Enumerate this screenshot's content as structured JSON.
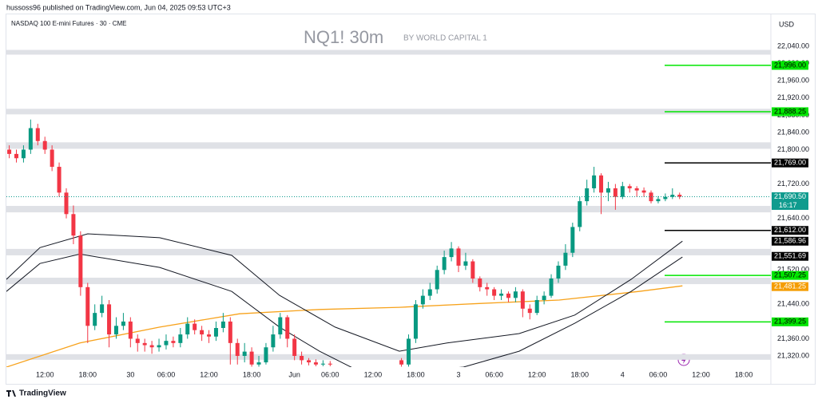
{
  "header": {
    "published": "hussoss96 published on TradingView.com, Jun 04, 2025 09:53 UTC+3",
    "symbol": "NASDAQ 100 E-mini Futures · 30 · CME",
    "watermark": "NQ1! 30m",
    "author": "BY WORLD CAPITAL 1",
    "currency": "USD"
  },
  "footer": {
    "brand": "TradingView"
  },
  "chart_data": {
    "type": "candlestick",
    "up_color": "#089981",
    "down_color": "#f23645",
    "xlim": [
      6.6,
      113.8
    ],
    "ylim": [
      21294,
      22111
    ],
    "xticks": [
      {
        "value": 12,
        "label": "12:00"
      },
      {
        "value": 18,
        "label": "18:00"
      },
      {
        "value": 24,
        "label": "30"
      },
      {
        "value": 29,
        "label": "06:00"
      },
      {
        "value": 35,
        "label": "12:00"
      },
      {
        "value": 41,
        "label": "18:00"
      },
      {
        "value": 47,
        "label": "Jun"
      },
      {
        "value": 52,
        "label": "06:00"
      },
      {
        "value": 58,
        "label": "12:00"
      },
      {
        "value": 64,
        "label": "18:00"
      },
      {
        "value": 70,
        "label": "3"
      },
      {
        "value": 75,
        "label": "06:00"
      },
      {
        "value": 81,
        "label": "12:00"
      },
      {
        "value": 87,
        "label": "18:00"
      },
      {
        "value": 93,
        "label": "4"
      },
      {
        "value": 98,
        "label": "06:00"
      },
      {
        "value": 104,
        "label": "12:00"
      },
      {
        "value": 110,
        "label": "18:00"
      }
    ],
    "yticks": [
      {
        "value": 22040,
        "label": "22,040.00"
      },
      {
        "value": 22000,
        "label": "22,000.00"
      },
      {
        "value": 21960,
        "label": "21,960.00"
      },
      {
        "value": 21920,
        "label": "21,920.00"
      },
      {
        "value": 21880,
        "label": "21,880.00"
      },
      {
        "value": 21840,
        "label": "21,840.00"
      },
      {
        "value": 21800,
        "label": "21,800.00"
      },
      {
        "value": 21720,
        "label": "21,720.00"
      },
      {
        "value": 21640,
        "label": "21,640.00"
      },
      {
        "value": 21520,
        "label": "21,520.00"
      },
      {
        "value": 21440,
        "label": "21,440.00"
      },
      {
        "value": 21360,
        "label": "21,360.00"
      },
      {
        "value": 21320,
        "label": "21,320.00"
      }
    ],
    "candles": [
      [
        7,
        21800,
        21810,
        21780,
        21790
      ],
      [
        8,
        21790,
        21800,
        21770,
        21780
      ],
      [
        9,
        21780,
        21810,
        21770,
        21800
      ],
      [
        10,
        21800,
        21870,
        21790,
        21850
      ],
      [
        11,
        21850,
        21860,
        21810,
        21820
      ],
      [
        12,
        21820,
        21830,
        21790,
        21800
      ],
      [
        13,
        21800,
        21810,
        21750,
        21760
      ],
      [
        14,
        21760,
        21770,
        21690,
        21700
      ],
      [
        15,
        21700,
        21710,
        21640,
        21650
      ],
      [
        16,
        21650,
        21670,
        21580,
        21600
      ],
      [
        17,
        21600,
        21610,
        21460,
        21480
      ],
      [
        18,
        21480,
        21490,
        21350,
        21390
      ],
      [
        19,
        21390,
        21440,
        21380,
        21420
      ],
      [
        20,
        21420,
        21460,
        21410,
        21440
      ],
      [
        21,
        21440,
        21450,
        21340,
        21370
      ],
      [
        22,
        21370,
        21410,
        21360,
        21390
      ],
      [
        23,
        21390,
        21420,
        21380,
        21400
      ],
      [
        24,
        21400,
        21410,
        21340,
        21360
      ],
      [
        25,
        21360,
        21370,
        21330,
        21350
      ],
      [
        26,
        21350,
        21360,
        21330,
        21345
      ],
      [
        27,
        21345,
        21355,
        21325,
        21340
      ],
      [
        28,
        21340,
        21360,
        21330,
        21345
      ],
      [
        29,
        21345,
        21370,
        21335,
        21355
      ],
      [
        30,
        21355,
        21365,
        21340,
        21350
      ],
      [
        31,
        21350,
        21385,
        21340,
        21370
      ],
      [
        32,
        21370,
        21410,
        21360,
        21395
      ],
      [
        33,
        21395,
        21405,
        21370,
        21380
      ],
      [
        34,
        21380,
        21390,
        21355,
        21370
      ],
      [
        35,
        21370,
        21380,
        21350,
        21365
      ],
      [
        36,
        21365,
        21400,
        21355,
        21385
      ],
      [
        37,
        21385,
        21420,
        21375,
        21400
      ],
      [
        38,
        21400,
        21410,
        21300,
        21350
      ],
      [
        39,
        21350,
        21360,
        21300,
        21320
      ],
      [
        40,
        21320,
        21350,
        21305,
        21330
      ],
      [
        41,
        21330,
        21340,
        21295,
        21300
      ],
      [
        42,
        21300,
        21320,
        21295,
        21305
      ],
      [
        43,
        21305,
        21350,
        21300,
        21340
      ],
      [
        44,
        21340,
        21390,
        21330,
        21370
      ],
      [
        45,
        21370,
        21420,
        21360,
        21410
      ],
      [
        46,
        21410,
        21415,
        21340,
        21360
      ],
      [
        47,
        21360,
        21370,
        21310,
        21320
      ],
      [
        48,
        21320,
        21330,
        21300,
        21310
      ],
      [
        49,
        21310,
        21315,
        21298,
        21305
      ],
      [
        50,
        21305,
        21312,
        21296,
        21300
      ],
      [
        51,
        21300,
        21310,
        21296,
        21302
      ],
      [
        52,
        21302,
        21308,
        21296,
        21300
      ],
      [
        62,
        21310,
        21315,
        21295,
        21300
      ],
      [
        63,
        21300,
        21370,
        21295,
        21360
      ],
      [
        64,
        21360,
        21450,
        21350,
        21440
      ],
      [
        65,
        21440,
        21475,
        21430,
        21460
      ],
      [
        66,
        21460,
        21490,
        21450,
        21475
      ],
      [
        67,
        21475,
        21530,
        21465,
        21520
      ],
      [
        68,
        21520,
        21565,
        21510,
        21550
      ],
      [
        69,
        21550,
        21585,
        21540,
        21570
      ],
      [
        70,
        21570,
        21575,
        21515,
        21530
      ],
      [
        71,
        21530,
        21560,
        21520,
        21540
      ],
      [
        72,
        21540,
        21545,
        21490,
        21500
      ],
      [
        73,
        21500,
        21505,
        21470,
        21480
      ],
      [
        74,
        21480,
        21490,
        21460,
        21475
      ],
      [
        75,
        21475,
        21480,
        21450,
        21460
      ],
      [
        76,
        21460,
        21475,
        21450,
        21465
      ],
      [
        77,
        21465,
        21470,
        21445,
        21455
      ],
      [
        78,
        21455,
        21480,
        21445,
        21470
      ],
      [
        79,
        21470,
        21475,
        21410,
        21430
      ],
      [
        80,
        21430,
        21440,
        21405,
        21420
      ],
      [
        81,
        21420,
        21460,
        21415,
        21450
      ],
      [
        82,
        21450,
        21470,
        21440,
        21460
      ],
      [
        83,
        21460,
        21510,
        21455,
        21500
      ],
      [
        84,
        21500,
        21540,
        21490,
        21530
      ],
      [
        85,
        21530,
        21580,
        21520,
        21560
      ],
      [
        86,
        21560,
        21630,
        21550,
        21620
      ],
      [
        87,
        21620,
        21690,
        21610,
        21680
      ],
      [
        88,
        21680,
        21730,
        21670,
        21710
      ],
      [
        89,
        21710,
        21760,
        21700,
        21740
      ],
      [
        90,
        21740,
        21745,
        21650,
        21700
      ],
      [
        91,
        21700,
        21725,
        21680,
        21710
      ],
      [
        92,
        21710,
        21720,
        21660,
        21690
      ],
      [
        93,
        21690,
        21725,
        21685,
        21715
      ],
      [
        94,
        21715,
        21720,
        21700,
        21710
      ],
      [
        95,
        21710,
        21715,
        21690,
        21705
      ],
      [
        96,
        21705,
        21712,
        21690,
        21700
      ],
      [
        97,
        21700,
        21705,
        21675,
        21680
      ],
      [
        98,
        21680,
        21692,
        21675,
        21685
      ],
      [
        99,
        21685,
        21698,
        21680,
        21690
      ],
      [
        100,
        21690,
        21710,
        21685,
        21695
      ],
      [
        101,
        21695,
        21700,
        21685,
        21690.5
      ]
    ],
    "series": [
      {
        "color": "#f7a21b",
        "x": [
          6.6,
          16.9,
          28.1,
          39.3,
          50.5,
          61.7,
          72.9,
          84.1,
          95.3,
          101.4
        ],
        "values": [
          21294,
          21350,
          21387,
          21418,
          21428,
          21433,
          21442,
          21450,
          21470,
          21483
        ]
      },
      {
        "color": "#131722",
        "x": [
          6.6,
          11.3,
          18,
          28.1,
          38.2,
          44.9,
          52.7,
          61.7,
          68.4,
          78.5,
          86.3,
          94.2,
          101.4
        ],
        "values": [
          21498,
          21572,
          21604,
          21595,
          21554,
          21461,
          21387,
          21331,
          21350,
          21372,
          21415,
          21498,
          21587
        ]
      },
      {
        "color": "#131722",
        "x": [
          6.6,
          11.3,
          16.9,
          28.1,
          38.2,
          44.9,
          50.5,
          57.2,
          70.7,
          78.5,
          86.3,
          94.2,
          101.4
        ],
        "values": [
          21470,
          21535,
          21557,
          21526,
          21470,
          21387,
          21331,
          21275,
          21294,
          21331,
          21396,
          21470,
          21550
        ]
      }
    ],
    "zones": [
      [
        22021,
        22032
      ],
      [
        21882,
        21895
      ],
      [
        21802,
        21817
      ],
      [
        21654,
        21669
      ],
      [
        21554,
        21569
      ],
      [
        21487,
        21502
      ],
      [
        21311,
        21324
      ]
    ],
    "levels": [
      {
        "value": 21996,
        "label": "21,996.00",
        "color": "#00e600"
      },
      {
        "value": 21888.25,
        "label": "21,888.25",
        "color": "#00e600"
      },
      {
        "value": 21769,
        "label": "21,769.00",
        "color": "#000000"
      },
      {
        "value": 21612,
        "label": "21,612.00",
        "color": "#000000"
      },
      {
        "value": 21507.25,
        "label": "21,507.25",
        "color": "#00e600"
      },
      {
        "value": 21399.25,
        "label": "21,399.25",
        "color": "#00e600"
      }
    ],
    "price_labels": [
      {
        "value": 21586.96,
        "label": "21,586.96",
        "color": "#000000"
      },
      {
        "value": 21551.69,
        "label": "21,551.69",
        "color": "#000000"
      },
      {
        "value": 21481.25,
        "label": "21,481.25",
        "color": "#f59d00"
      }
    ],
    "last_price": {
      "value": 21690.5,
      "label": "21,690.50",
      "countdown": "16:17",
      "color": "#0f9b8e"
    }
  }
}
